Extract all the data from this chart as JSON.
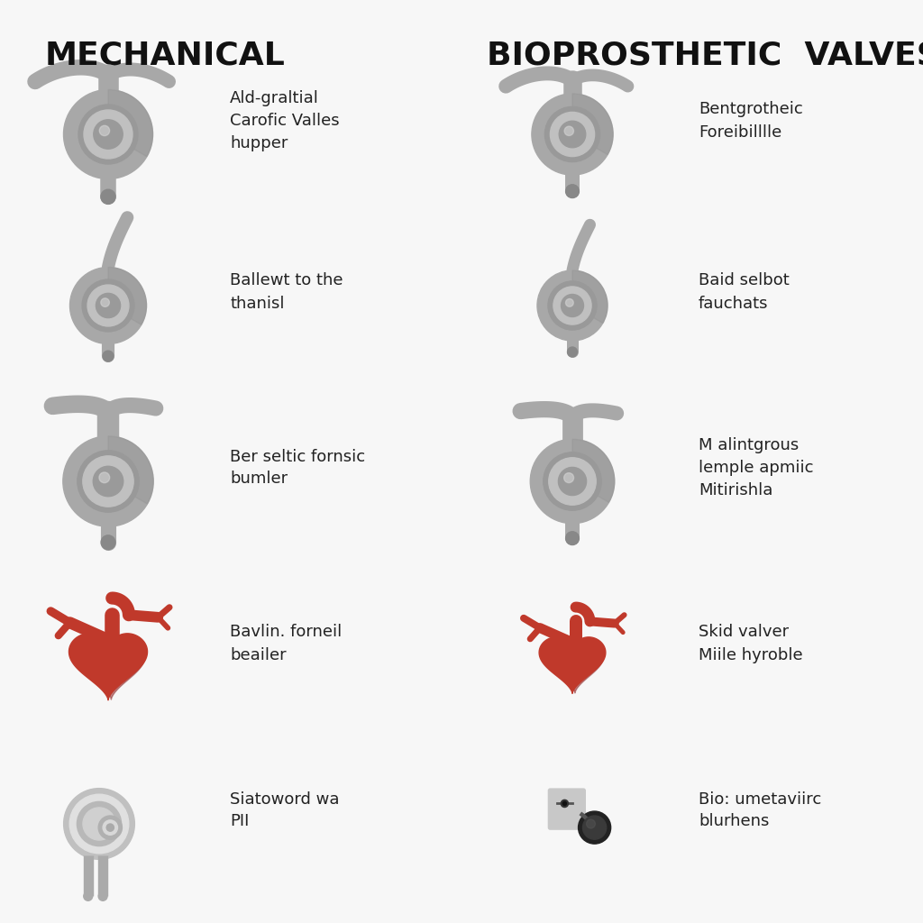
{
  "background_color": "#f7f7f7",
  "left_title": "MECHANICAL",
  "right_title": "BIOPROSTHETIC  VALVES",
  "left_labels": [
    "Ald-graltial\nCarofic Valles\nhupper",
    "Ballewt to the\nthanisl",
    "Ber seltic fornsic\nbumler",
    "Bavlin. forneil\nbeailer",
    "Siatoword wa\nPII"
  ],
  "right_labels": [
    "Bentgrotheic\nForeibilllle",
    "Baid selbot\nfauchats",
    "M alintgrous\nlemple apmiic\nMitirishla",
    "Skid valver\nMiile hyroble",
    "Bio: umetaviirc\nblurhens"
  ],
  "title_fontsize": 26,
  "label_fontsize": 13,
  "title_color": "#111111",
  "label_color": "#222222",
  "valve_color_light": "#c8c8c8",
  "valve_color_mid": "#a8a8a8",
  "valve_color_dark": "#888888",
  "bio_color_dark": "#8b2020",
  "bio_color_mid": "#c0392b",
  "bio_color_light": "#d05050"
}
